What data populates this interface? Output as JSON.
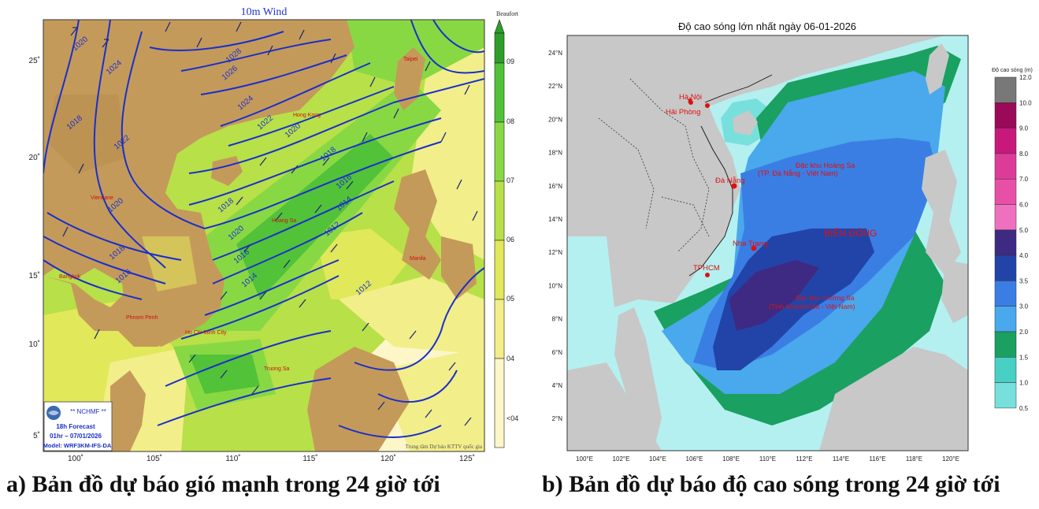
{
  "map_a": {
    "title": "10m Wind",
    "colorbar_title": "Beaufort",
    "colorbar_ticks": [
      "09",
      "08",
      "07",
      "06",
      "05",
      "04",
      "<04"
    ],
    "lat_ticks": [
      "25˚",
      "20˚",
      "15˚",
      "10˚",
      "5˚"
    ],
    "lon_ticks": [
      "100˚",
      "105˚",
      "110˚",
      "115˚",
      "120˚",
      "125˚"
    ],
    "isobar_labels": [
      "1020",
      "1024",
      "1018",
      "1022",
      "1020",
      "1028",
      "1026",
      "1024",
      "1022",
      "1020",
      "1018",
      "1016",
      "1014",
      "1012",
      "1018",
      "1020",
      "1016",
      "1014",
      "1012",
      "1018",
      "1016"
    ],
    "place_labels": [
      "Taipei",
      "Hong Kong",
      "Vientiane",
      "Hoang Sa",
      "Bangkok",
      "Phnom Penh",
      "Ho Chi Minh City",
      "Truong Sa",
      "Manila"
    ],
    "info_box": {
      "org": "** NCHMF **",
      "forecast": "18h Forecast",
      "valid": "01hr – 07/01/2026",
      "model": "Model: WRF3KM-IFS-DA"
    },
    "credit": "Trung tâm Dự báo KTTV quốc gia",
    "colors": {
      "land": "#c49a5a",
      "calm": "#fdf6c8",
      "b04": "#f2ee8a",
      "b05": "#e1e85a",
      "b06": "#b8e048",
      "b07": "#88d844",
      "b08": "#52c238",
      "b09": "#2e9e2a",
      "isobar": "#1a2fcc",
      "label": "#cc1111"
    }
  },
  "map_b": {
    "title": "Độ cao sóng lớn nhất ngày 06-01-2026",
    "colorbar_title": "Độ cao sóng (m)",
    "colorbar_ticks": [
      "12.0",
      "10.0",
      "9.0",
      "8.0",
      "7.0",
      "6.0",
      "5.0",
      "4.0",
      "3.5",
      "3.0",
      "2.0",
      "1.5",
      "1.0",
      "0.5"
    ],
    "lat_ticks": [
      "24°N",
      "22°N",
      "20°N",
      "18°N",
      "16°N",
      "14°N",
      "12°N",
      "10°N",
      "8°N",
      "6°N",
      "4°N",
      "2°N"
    ],
    "lon_ticks": [
      "100°E",
      "102°E",
      "104°E",
      "106°E",
      "108°E",
      "110°E",
      "112°E",
      "114°E",
      "116°E",
      "118°E",
      "120°E"
    ],
    "cities": [
      "Hà Nội",
      "Hải Phòng",
      "Đà Nẵng",
      "Nha Trang",
      "TPHCM"
    ],
    "sea_labels": [
      "Đặc khu Hoàng Sa",
      "(TP. Đà Nẵng - Việt Nam)",
      "BIỂN ĐÔNG",
      "Đặc khu Trường Sa",
      "(Tỉnh Khánh Hòa - Việt Nam)"
    ],
    "colors": {
      "land": "#c8c8c8",
      "w05": "#b4f0f0",
      "w10": "#78e0dc",
      "w15": "#48d0c4",
      "w20": "#1aa060",
      "w30": "#4aa8ec",
      "w35": "#3a7ee4",
      "w40": "#2244a8",
      "w50": "#3e2a82",
      "w60": "#f070c0",
      "w70": "#e850a8",
      "w80": "#dc3c98",
      "w90": "#c8187c",
      "w100": "#9a0a58",
      "w120": "#787878",
      "city": "#dd1111"
    }
  },
  "captions": {
    "a": "a) Bản đồ dự báo gió mạnh trong 24 giờ tới",
    "b": "b) Bản đồ dự báo độ cao sóng trong 24 giờ tới"
  }
}
